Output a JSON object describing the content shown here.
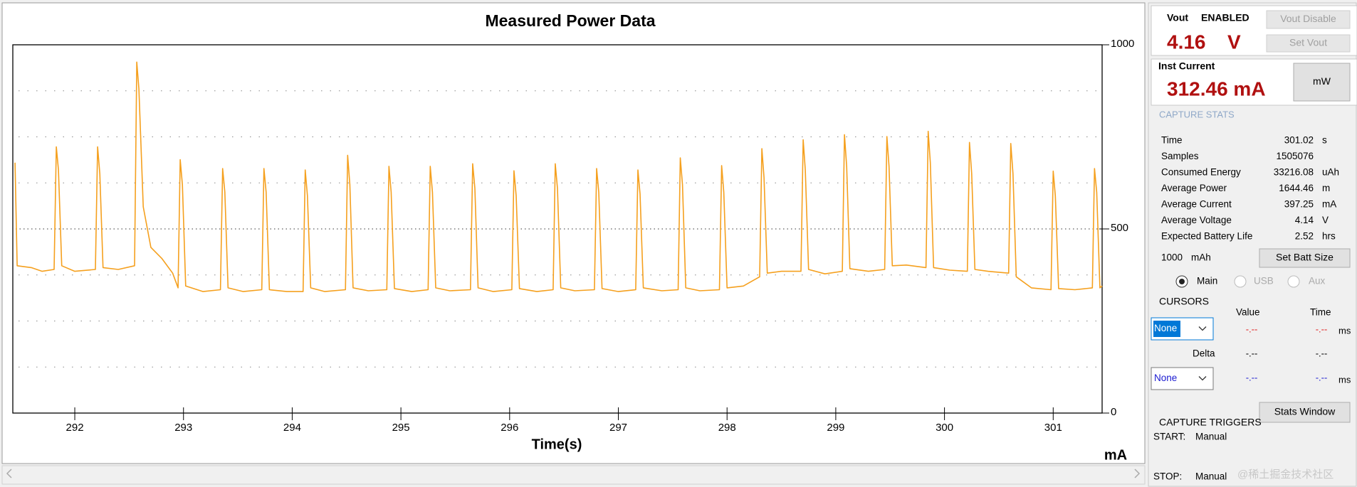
{
  "chart_data": {
    "type": "line",
    "title": "Measured Power Data",
    "x_label": "Time(s)",
    "y_unit": "mA",
    "color": "#f5a01e",
    "x": [
      291.45,
      291.47,
      291.6,
      291.7,
      291.81,
      291.83,
      291.85,
      291.88,
      292.0,
      292.19,
      292.21,
      292.23,
      292.26,
      292.4,
      292.55,
      292.57,
      292.59,
      292.63,
      292.7,
      292.8,
      292.9,
      292.95,
      292.97,
      292.99,
      293.02,
      293.18,
      293.34,
      293.36,
      293.38,
      293.41,
      293.55,
      293.72,
      293.74,
      293.76,
      293.79,
      293.95,
      294.1,
      294.12,
      294.14,
      294.17,
      294.3,
      294.49,
      294.51,
      294.53,
      294.56,
      294.7,
      294.87,
      294.89,
      294.91,
      294.94,
      295.1,
      295.25,
      295.27,
      295.29,
      295.32,
      295.45,
      295.64,
      295.66,
      295.68,
      295.71,
      295.85,
      296.02,
      296.04,
      296.06,
      296.09,
      296.25,
      296.4,
      296.42,
      296.44,
      296.47,
      296.6,
      296.78,
      296.8,
      296.82,
      296.85,
      297.0,
      297.16,
      297.18,
      297.2,
      297.23,
      297.4,
      297.55,
      297.57,
      297.59,
      297.62,
      297.75,
      297.93,
      297.95,
      297.97,
      298.0,
      298.15,
      298.3,
      298.32,
      298.34,
      298.37,
      298.5,
      298.68,
      298.7,
      298.72,
      298.75,
      298.9,
      299.06,
      299.08,
      299.1,
      299.13,
      299.3,
      299.45,
      299.47,
      299.49,
      299.52,
      299.65,
      299.83,
      299.85,
      299.87,
      299.9,
      300.05,
      300.21,
      300.23,
      300.25,
      300.28,
      300.4,
      300.59,
      300.61,
      300.63,
      300.66,
      300.8,
      300.98,
      301.0,
      301.02,
      301.05,
      301.2,
      301.36,
      301.38,
      301.4,
      301.43,
      301.45
    ],
    "values": [
      680,
      400,
      395,
      385,
      390,
      723,
      660,
      400,
      385,
      390,
      723,
      650,
      395,
      390,
      400,
      953,
      880,
      560,
      450,
      420,
      380,
      340,
      688,
      620,
      345,
      330,
      335,
      664,
      600,
      340,
      330,
      335,
      664,
      600,
      335,
      330,
      330,
      660,
      590,
      340,
      330,
      335,
      700,
      620,
      340,
      332,
      335,
      670,
      600,
      338,
      330,
      335,
      670,
      600,
      340,
      332,
      335,
      677,
      610,
      340,
      330,
      335,
      658,
      590,
      338,
      330,
      335,
      677,
      610,
      340,
      332,
      335,
      664,
      600,
      338,
      330,
      335,
      660,
      595,
      340,
      332,
      335,
      693,
      620,
      340,
      332,
      335,
      672,
      600,
      340,
      345,
      370,
      718,
      640,
      380,
      385,
      385,
      742,
      660,
      390,
      378,
      385,
      756,
      670,
      392,
      385,
      390,
      751,
      670,
      400,
      402,
      395,
      765,
      680,
      395,
      388,
      385,
      735,
      650,
      390,
      385,
      380,
      732,
      650,
      370,
      340,
      335,
      657,
      590,
      338,
      335,
      340,
      664,
      600,
      340,
      345
    ],
    "xlim": [
      291.43,
      301.45
    ],
    "xticks": [
      292,
      293,
      294,
      295,
      296,
      297,
      298,
      299,
      300,
      301
    ],
    "ylim": [
      0,
      1000
    ],
    "yticks": [
      0,
      500,
      1000
    ],
    "ygrid": [
      125,
      250,
      375,
      625,
      750,
      875
    ],
    "grid": true
  },
  "panel": {
    "vout": {
      "label": "Vout",
      "state": "ENABLED",
      "value": "4.16",
      "unit": "V",
      "disable_button": "Vout Disable",
      "set_button": "Set Vout"
    },
    "current": {
      "label": "Inst Current",
      "value": "312.46 mA",
      "mode_button": "mW"
    },
    "stats": {
      "title": "CAPTURE STATS",
      "rows": [
        {
          "label": "Time",
          "value": "301.02",
          "unit": "s"
        },
        {
          "label": "Samples",
          "value": "1505076"
        },
        {
          "label": "Consumed Energy",
          "value": "33216.08",
          "unit": "uAh"
        },
        {
          "label": "Average Power",
          "value": "1644.46",
          "unit": "m"
        },
        {
          "label": "Average Current",
          "value": "397.25",
          "unit": "mA"
        },
        {
          "label": "Average Voltage",
          "value": "4.14",
          "unit": "V"
        },
        {
          "label": "Expected Battery Life",
          "value": "2.52",
          "unit": "hrs"
        }
      ]
    },
    "battery": {
      "size": "1000",
      "unit": "mAh",
      "button": "Set Batt Size"
    },
    "channels": [
      "Main",
      "USB",
      "Aux"
    ],
    "cursors": {
      "title": "CURSORS",
      "value_header": "Value",
      "time_header": "Time",
      "cursor1": {
        "select": "None",
        "value": "-.--",
        "time": "-.--",
        "unit": "ms"
      },
      "delta": {
        "label": "Delta",
        "value": "-.--",
        "time": "-.--"
      },
      "cursor2": {
        "select": "None",
        "value": "-.--",
        "time": "-.--",
        "unit": "ms"
      }
    },
    "stats_window_button": "Stats Window",
    "triggers": {
      "title": "CAPTURE TRIGGERS",
      "start_label": "START:",
      "start": "Manual",
      "stop_label": "STOP:",
      "stop": "Manual"
    },
    "watermark": "@稀土掘金技术社区"
  }
}
